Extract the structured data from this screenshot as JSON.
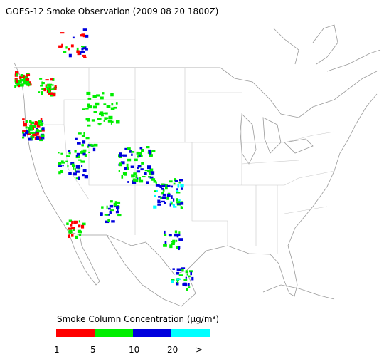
{
  "title": "GOES-12 Smoke Observation (2009 08 20  1800Z)",
  "legend": {
    "title": "Smoke Column Concentration (μg/m³)",
    "bins": [
      {
        "label": "1",
        "color": "#ff0000"
      },
      {
        "label": "5",
        "color": "#00ee00"
      },
      {
        "label": "10",
        "color": "#0000dd"
      },
      {
        "label": "20",
        "color": "#00ffff"
      }
    ],
    "last_label": ">"
  }
}
